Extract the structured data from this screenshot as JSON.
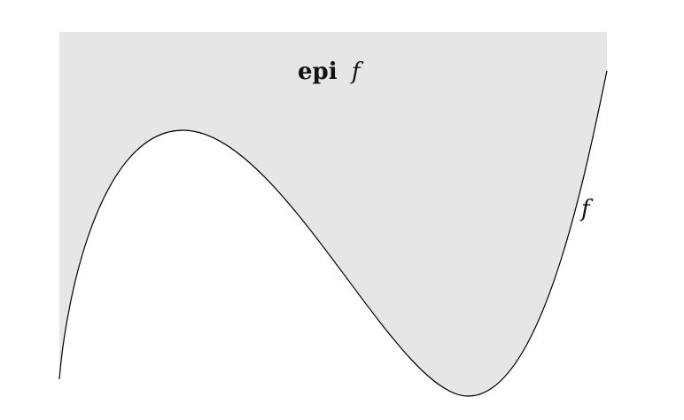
{
  "figure": {
    "region_label_bold": "epi",
    "region_label_italic": "f",
    "curve_label": "f",
    "colors": {
      "epigraph_fill": "#e6e6e6",
      "curve_stroke": "#000000",
      "background": "#ffffff"
    }
  }
}
